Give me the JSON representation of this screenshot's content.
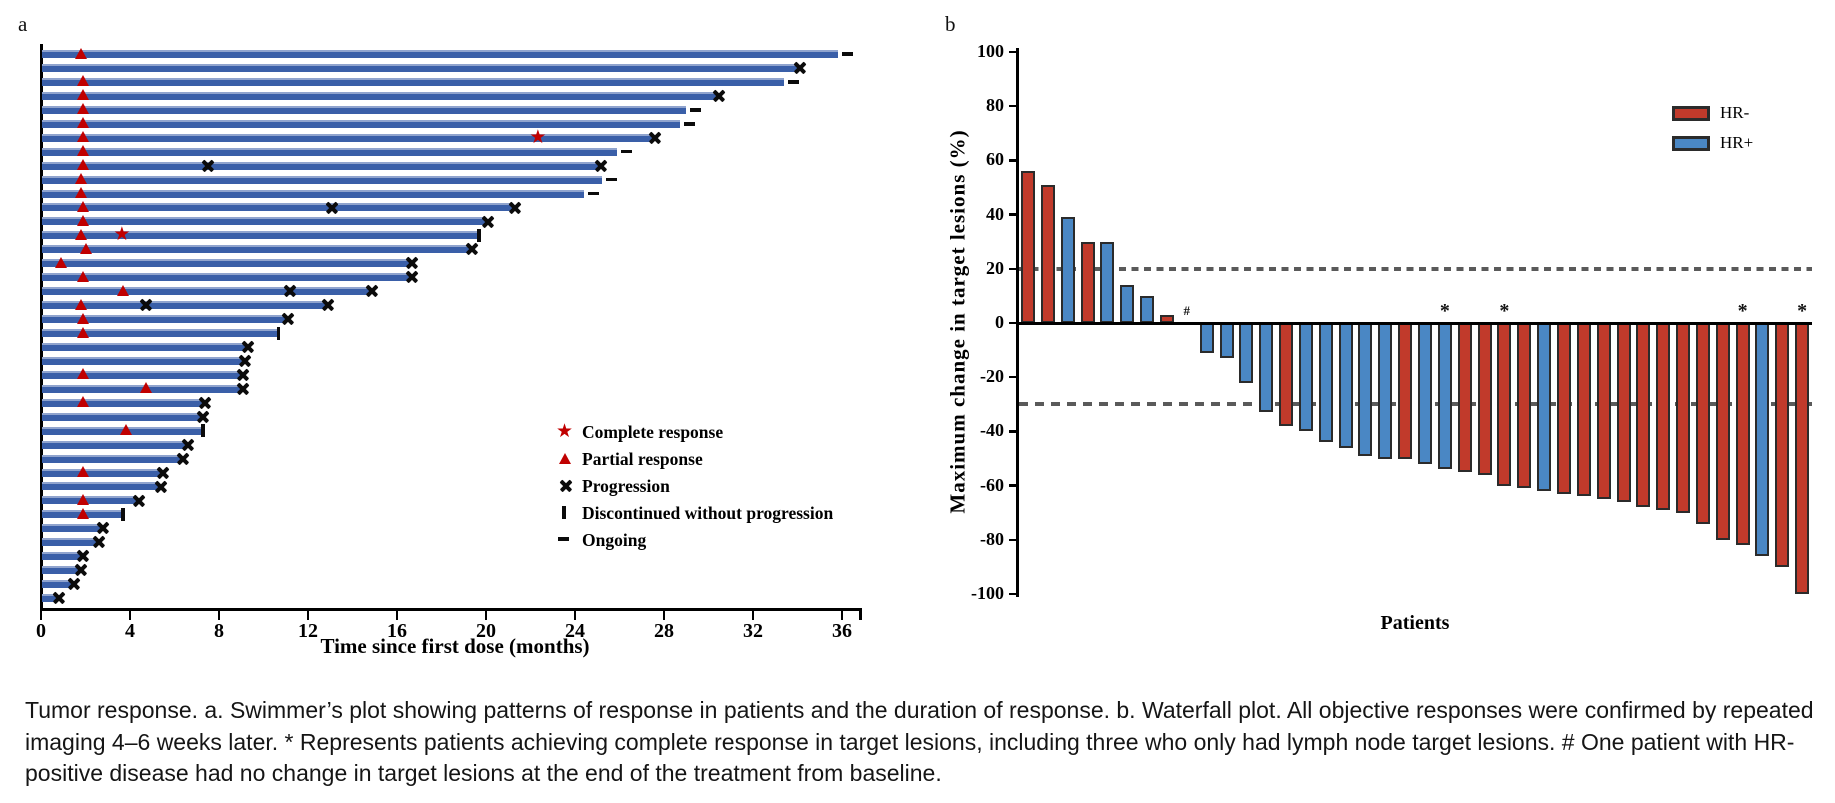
{
  "figure": {
    "panel_a_label": "a",
    "panel_b_label": "b"
  },
  "colors": {
    "swimmer_bar": "#3A5FA8",
    "response_marker": "#C00000",
    "hr_negative": "#C13A2B",
    "hr_positive": "#4A87C4",
    "bar_outline": "#2B2B2B",
    "reference_line": "#5A5A5A"
  },
  "caption": {
    "text": "Tumor response. a. Swimmer’s plot showing patterns of response in patients and the duration of response. b. Waterfall plot. All objective responses were confirmed by repeated imaging 4–6 weeks later. * Represents patients achieving complete response in target lesions, including three who only had lymph node target lesions. # One patient with HR-positive disease had no change in target lesions at the end of the treatment from baseline."
  },
  "chart_data": [
    {
      "type": "bar",
      "name": "swimmers_plot",
      "orientation": "horizontal",
      "xlabel": "Time since first dose (months)",
      "xlim": [
        0,
        37
      ],
      "xticks": [
        "0",
        "4",
        "8",
        "12",
        "16",
        "20",
        "24",
        "28",
        "32",
        "36"
      ],
      "legend": [
        {
          "marker": "star",
          "label": "Complete response"
        },
        {
          "marker": "triangle",
          "label": "Partial response"
        },
        {
          "marker": "cross",
          "label": "Progression"
        },
        {
          "marker": "vbar",
          "label": "Discontinued without progression"
        },
        {
          "marker": "dash",
          "label": "Ongoing"
        }
      ],
      "marker_meaning": {
        "pr": "partial response (months)",
        "cr": "complete response (months)",
        "x": "progression events mid-bar (months)",
        "end": "status at end of bar"
      },
      "patients": [
        {
          "d": 35.8,
          "pr": 1.8,
          "cr": null,
          "x": [],
          "end": "ongoing"
        },
        {
          "d": 34.0,
          "pr": null,
          "cr": null,
          "x": [],
          "end": "progression"
        },
        {
          "d": 33.4,
          "pr": 1.9,
          "cr": null,
          "x": [],
          "end": "ongoing"
        },
        {
          "d": 30.4,
          "pr": 1.9,
          "cr": null,
          "x": [],
          "end": "progression"
        },
        {
          "d": 29.0,
          "pr": 1.9,
          "cr": null,
          "x": [],
          "end": "ongoing"
        },
        {
          "d": 28.7,
          "pr": 1.9,
          "cr": null,
          "x": [],
          "end": "ongoing"
        },
        {
          "d": 27.5,
          "pr": 1.9,
          "cr": 22.4,
          "x": [],
          "end": "progression"
        },
        {
          "d": 25.9,
          "pr": 1.9,
          "cr": null,
          "x": [],
          "end": "ongoing"
        },
        {
          "d": 25.1,
          "pr": 1.9,
          "cr": null,
          "x": [
            7.5
          ],
          "end": "progression"
        },
        {
          "d": 25.2,
          "pr": 1.8,
          "cr": null,
          "x": [],
          "end": "ongoing"
        },
        {
          "d": 24.4,
          "pr": 1.8,
          "cr": null,
          "x": [],
          "end": "ongoing"
        },
        {
          "d": 21.2,
          "pr": 1.9,
          "cr": null,
          "x": [
            13.1
          ],
          "end": "progression"
        },
        {
          "d": 20.0,
          "pr": 1.9,
          "cr": null,
          "x": [],
          "end": "progression"
        },
        {
          "d": 19.6,
          "pr": 1.8,
          "cr": 3.7,
          "x": [],
          "end": "discontinued"
        },
        {
          "d": 19.3,
          "pr": 2.0,
          "cr": null,
          "x": [],
          "end": "progression"
        },
        {
          "d": 16.6,
          "pr": 0.9,
          "cr": null,
          "x": [],
          "end": "progression"
        },
        {
          "d": 16.6,
          "pr": 1.9,
          "cr": null,
          "x": [],
          "end": "progression"
        },
        {
          "d": 14.8,
          "pr": 3.7,
          "cr": null,
          "x": [
            11.2
          ],
          "end": "progression"
        },
        {
          "d": 12.8,
          "pr": 1.8,
          "cr": null,
          "x": [
            4.7
          ],
          "end": "progression"
        },
        {
          "d": 11.0,
          "pr": 1.9,
          "cr": null,
          "x": [],
          "end": "progression"
        },
        {
          "d": 10.6,
          "pr": 1.9,
          "cr": null,
          "x": [],
          "end": "discontinued"
        },
        {
          "d": 9.2,
          "pr": null,
          "cr": null,
          "x": [],
          "end": "progression"
        },
        {
          "d": 9.1,
          "pr": null,
          "cr": null,
          "x": [],
          "end": "progression"
        },
        {
          "d": 9.0,
          "pr": 1.9,
          "cr": null,
          "x": [],
          "end": "progression"
        },
        {
          "d": 9.0,
          "pr": 4.7,
          "cr": null,
          "x": [],
          "end": "progression"
        },
        {
          "d": 7.3,
          "pr": 1.9,
          "cr": null,
          "x": [],
          "end": "progression"
        },
        {
          "d": 7.2,
          "pr": null,
          "cr": null,
          "x": [],
          "end": "progression"
        },
        {
          "d": 7.2,
          "pr": 3.8,
          "cr": null,
          "x": [],
          "end": "discontinued"
        },
        {
          "d": 6.5,
          "pr": null,
          "cr": null,
          "x": [],
          "end": "progression"
        },
        {
          "d": 6.3,
          "pr": null,
          "cr": null,
          "x": [],
          "end": "progression"
        },
        {
          "d": 5.4,
          "pr": 1.9,
          "cr": null,
          "x": [],
          "end": "progression"
        },
        {
          "d": 5.3,
          "pr": null,
          "cr": null,
          "x": [],
          "end": "progression"
        },
        {
          "d": 4.3,
          "pr": 1.9,
          "cr": null,
          "x": [],
          "end": "progression"
        },
        {
          "d": 3.6,
          "pr": 1.9,
          "cr": null,
          "x": [],
          "end": "discontinued"
        },
        {
          "d": 2.7,
          "pr": null,
          "cr": null,
          "x": [],
          "end": "progression"
        },
        {
          "d": 2.5,
          "pr": null,
          "cr": null,
          "x": [],
          "end": "progression"
        },
        {
          "d": 1.8,
          "pr": null,
          "cr": null,
          "x": [],
          "end": "progression"
        },
        {
          "d": 1.7,
          "pr": null,
          "cr": null,
          "x": [],
          "end": "progression"
        },
        {
          "d": 1.4,
          "pr": null,
          "cr": null,
          "x": [],
          "end": "progression"
        },
        {
          "d": 0.7,
          "pr": null,
          "cr": null,
          "x": [],
          "end": "progression"
        }
      ]
    },
    {
      "type": "bar",
      "name": "waterfall_plot",
      "ylabel": "Maximum change in target lesions (%)",
      "xlabel": "Patients",
      "ylim": [
        -100,
        100
      ],
      "yticks": [
        "100",
        "80",
        "60",
        "40",
        "20",
        "0",
        "-20",
        "-40",
        "-60",
        "-80",
        "-100"
      ],
      "ytick_values": [
        100,
        80,
        60,
        40,
        20,
        0,
        -20,
        -40,
        -60,
        -80,
        -100
      ],
      "reference_lines": [
        20,
        -30
      ],
      "legend": [
        {
          "label": "HR-",
          "color": "#C13A2B"
        },
        {
          "label": "HR+",
          "color": "#4A87C4"
        }
      ],
      "values": [
        56,
        51,
        39,
        30,
        30,
        14,
        10,
        3,
        0,
        -11,
        -13,
        -22,
        -33,
        -38,
        -40,
        -44,
        -46,
        -49,
        -50,
        -50,
        -52,
        -54,
        -55,
        -56,
        -60,
        -61,
        -62,
        -63,
        -64,
        -65,
        -66,
        -68,
        -69,
        -70,
        -74,
        -80,
        -82,
        -86,
        -90,
        -100
      ],
      "groups": [
        "HR-",
        "HR-",
        "HR+",
        "HR-",
        "HR+",
        "HR+",
        "HR+",
        "HR-",
        "HR+",
        "HR+",
        "HR+",
        "HR+",
        "HR+",
        "HR-",
        "HR+",
        "HR+",
        "HR+",
        "HR+",
        "HR+",
        "HR-",
        "HR+",
        "HR+",
        "HR-",
        "HR-",
        "HR-",
        "HR-",
        "HR+",
        "HR-",
        "HR-",
        "HR-",
        "HR-",
        "HR-",
        "HR-",
        "HR-",
        "HR-",
        "HR-",
        "HR-",
        "HR+",
        "HR-",
        "HR-"
      ],
      "annotations": {
        "9": "#",
        "22": "*",
        "25": "*",
        "37": "*",
        "40": "*"
      }
    }
  ]
}
